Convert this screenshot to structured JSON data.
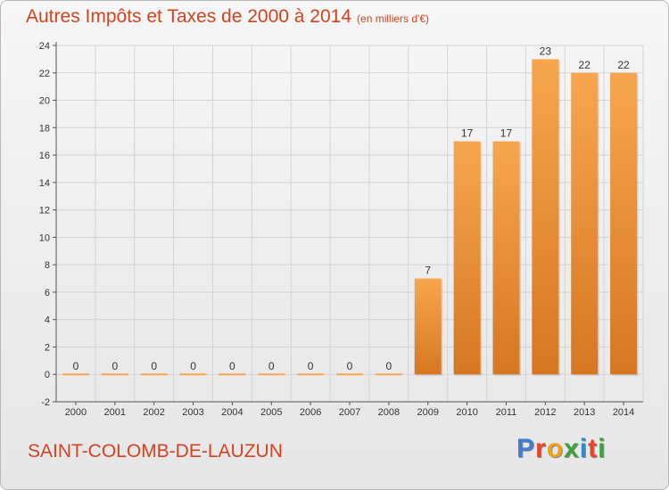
{
  "title": "Autres Impôts et Taxes de 2000 à 2014",
  "subtitle": "(en milliers d'€)",
  "commune": "SAINT-COLOMB-DE-LAUZUN",
  "brand": {
    "text": "Proxiti",
    "colors": [
      "#3f7fd0",
      "#e8452c",
      "#f0a020",
      "#3aa43a",
      "#2a8fd6",
      "#e8452c",
      "#3aa43a"
    ]
  },
  "colors": {
    "bar_light": "#f7a64e",
    "bar_dark": "#d77722",
    "title": "#d14422",
    "grid": "#d4d4d4"
  },
  "chart_data": {
    "type": "bar",
    "categories": [
      "2000",
      "2001",
      "2002",
      "2003",
      "2004",
      "2005",
      "2006",
      "2007",
      "2008",
      "2009",
      "2010",
      "2011",
      "2012",
      "2013",
      "2014"
    ],
    "values": [
      0,
      0,
      0,
      0,
      0,
      0,
      0,
      0,
      0,
      7,
      17,
      17,
      23,
      22,
      22
    ],
    "title": "Autres Impôts et Taxes de 2000 à 2014",
    "subtitle": "(en milliers d'€)",
    "xlabel": "",
    "ylabel": "",
    "ylim": [
      -2,
      24
    ],
    "yticks": [
      -2,
      0,
      2,
      4,
      6,
      8,
      10,
      12,
      14,
      16,
      18,
      20,
      22,
      24
    ],
    "grid": true,
    "data_labels": true
  }
}
